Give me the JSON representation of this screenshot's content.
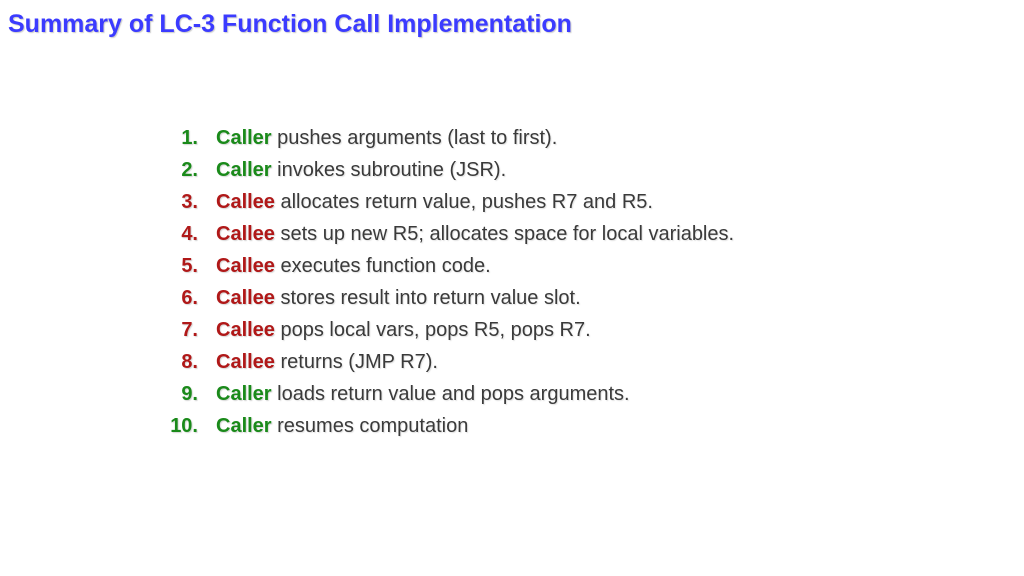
{
  "title": "Summary of LC-3 Function Call Implementation",
  "title_color": "#3b3bff",
  "background_color": "#ffffff",
  "caller_color": "#1a8a1a",
  "callee_color": "#b01818",
  "text_color": "#3a3a3a",
  "title_fontsize": 25,
  "item_fontsize": 20,
  "items": [
    {
      "n": "1.",
      "role": "Caller",
      "rest": " pushes arguments (last to first)."
    },
    {
      "n": "2.",
      "role": "Caller",
      "rest": " invokes subroutine (JSR)."
    },
    {
      "n": "3.",
      "role": "Callee",
      "rest": " allocates return value, pushes R7 and R5."
    },
    {
      "n": "4.",
      "role": "Callee",
      "rest": " sets up new R5; allocates space for local variables."
    },
    {
      "n": "5.",
      "role": "Callee",
      "rest": " executes function code."
    },
    {
      "n": "6.",
      "role": "Callee",
      "rest": " stores result into return value slot."
    },
    {
      "n": "7.",
      "role": "Callee",
      "rest": " pops local vars, pops R5, pops R7."
    },
    {
      "n": "8.",
      "role": "Callee",
      "rest": " returns (JMP R7)."
    },
    {
      "n": "9.",
      "role": "Caller",
      "rest": " loads return value and pops arguments."
    },
    {
      "n": "10.",
      "role": "Caller",
      "rest": " resumes computation"
    }
  ]
}
